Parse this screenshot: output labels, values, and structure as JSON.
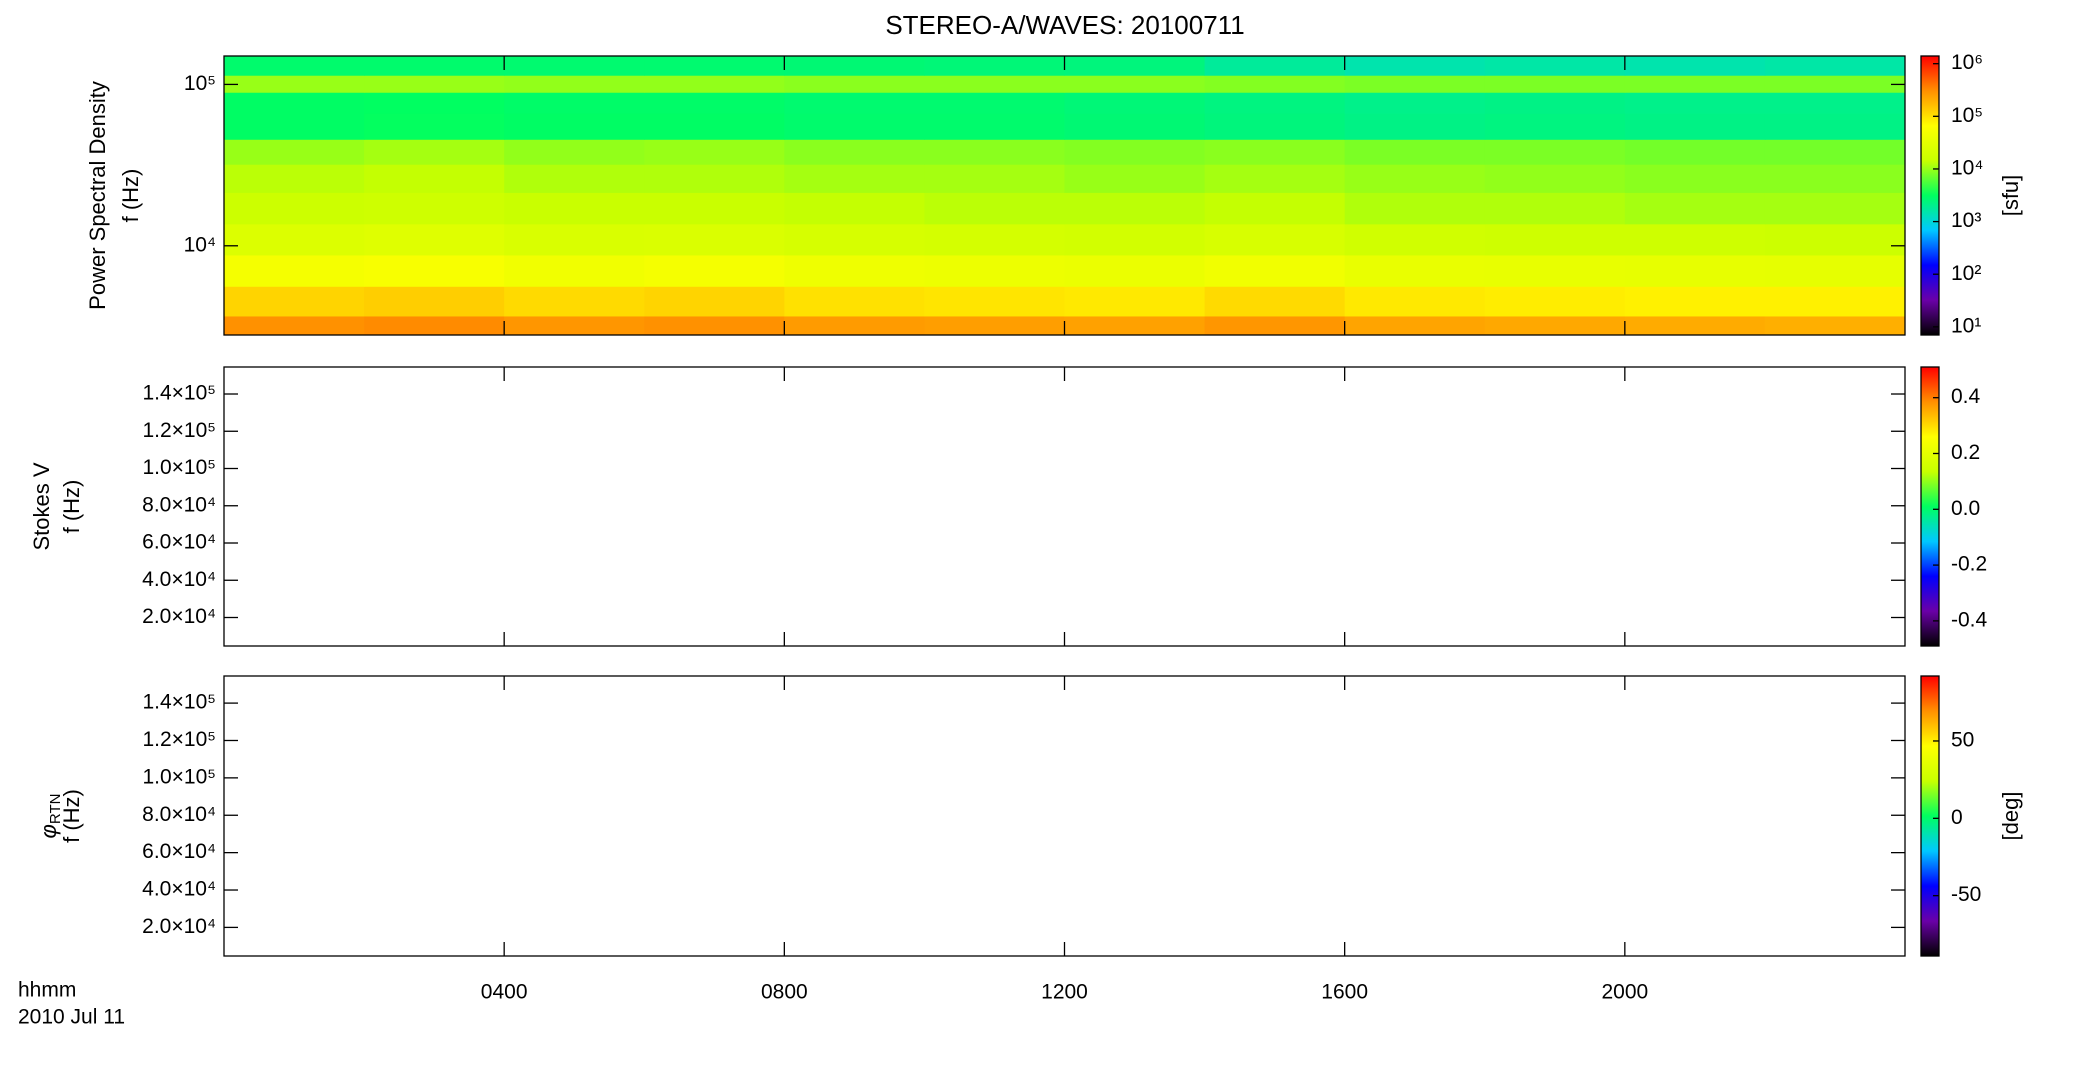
{
  "chart_data": [
    {
      "type": "heatmap",
      "title": "STEREO-A/WAVES: 20100711",
      "ylabel": [
        "Power Spectral Density",
        "f (Hz)"
      ],
      "log": true,
      "ylim": [
        2800,
        150000
      ],
      "yticks": [
        {
          "value": 10000,
          "label": "10⁴"
        },
        {
          "value": 100000,
          "label": "10⁵"
        }
      ],
      "xlim": [
        0,
        24
      ],
      "x": [
        1,
        3,
        5,
        7,
        9,
        11,
        13,
        15,
        17,
        19,
        21,
        23
      ],
      "y": [
        3000,
        4500,
        7000,
        11000,
        17000,
        27000,
        38000,
        55000,
        80000,
        100000,
        130000
      ],
      "z": [
        [
          300000,
          320000,
          280000,
          300000,
          260000,
          250000,
          240000,
          280000,
          230000,
          220000,
          210000,
          200000
        ],
        [
          120000,
          130000,
          110000,
          120000,
          100000,
          95000,
          90000,
          110000,
          90000,
          85000,
          80000,
          80000
        ],
        [
          50000,
          55000,
          45000,
          50000,
          42000,
          40000,
          38000,
          45000,
          36000,
          35000,
          34000,
          33000
        ],
        [
          25000,
          27000,
          23000,
          24000,
          21000,
          20000,
          19000,
          22000,
          18000,
          17000,
          17000,
          16000
        ],
        [
          16000,
          17000,
          15000,
          15000,
          14000,
          13000,
          13000,
          14000,
          12000,
          12000,
          11000,
          11000
        ],
        [
          13000,
          14000,
          12000,
          12000,
          11000,
          11000,
          10000,
          11000,
          10000,
          9500,
          9000,
          9000
        ],
        [
          10000,
          11000,
          9500,
          10000,
          9000,
          9000,
          8500,
          9000,
          8000,
          8000,
          7500,
          7500
        ],
        [
          3000,
          3200,
          3000,
          3000,
          2800,
          2800,
          2600,
          2400,
          2200,
          2300,
          2200,
          2200
        ],
        [
          3000,
          3100,
          2900,
          2900,
          2700,
          2700,
          2500,
          2300,
          2100,
          2200,
          2100,
          2100
        ],
        [
          10000,
          10000,
          9500,
          9500,
          9000,
          9000,
          9000,
          8500,
          8000,
          8000,
          8000,
          8000
        ],
        [
          2800,
          2800,
          2700,
          2700,
          2600,
          2500,
          2400,
          1800,
          1500,
          1600,
          1500,
          1600
        ]
      ],
      "clog": true,
      "clim": [
        7,
        1400000
      ],
      "cticks": [
        {
          "value": 10,
          "label": "10¹"
        },
        {
          "value": 100,
          "label": "10²"
        },
        {
          "value": 1000,
          "label": "10³"
        },
        {
          "value": 10000,
          "label": "10⁴"
        },
        {
          "value": 100000,
          "label": "10⁵"
        },
        {
          "value": 1000000,
          "label": "10⁶"
        }
      ],
      "clabel": "[sfu]",
      "colormap": [
        "#000000",
        "#6a00a8",
        "#0000ff",
        "#00c8ff",
        "#00ff60",
        "#c8ff00",
        "#ffff00",
        "#ff9000",
        "#ff0000"
      ]
    },
    {
      "type": "heatmap",
      "ylabel": [
        "Stokes V",
        "f (Hz)"
      ],
      "log": false,
      "ylim": [
        4700,
        154500
      ],
      "yticks": [
        {
          "value": 20000,
          "label": "2.0×10⁴"
        },
        {
          "value": 40000,
          "label": "4.0×10⁴"
        },
        {
          "value": 60000,
          "label": "6.0×10⁴"
        },
        {
          "value": 80000,
          "label": "8.0×10⁴"
        },
        {
          "value": 100000,
          "label": "1.0×10⁵"
        },
        {
          "value": 120000,
          "label": "1.2×10⁵"
        },
        {
          "value": 140000,
          "label": "1.4×10⁵"
        }
      ],
      "xlim": [
        0,
        24
      ],
      "clog": false,
      "clim": [
        -0.49,
        0.51
      ],
      "cticks": [
        -0.4,
        -0.2,
        {
          "value": 0,
          "label": "0.0"
        },
        0.2,
        0.4
      ],
      "colormap": [
        "#000000",
        "#6a00a8",
        "#0000ff",
        "#00c8ff",
        "#00ff60",
        "#c8ff00",
        "#ffff00",
        "#ff9000",
        "#ff0000"
      ]
    },
    {
      "type": "heatmap",
      "ylabel_symbol": "φ",
      "ylabel_subscript": "RTN",
      "ylabel": [
        "f (Hz)"
      ],
      "log": false,
      "ylim": [
        4700,
        154500
      ],
      "yticks": [
        {
          "value": 20000,
          "label": "2.0×10⁴"
        },
        {
          "value": 40000,
          "label": "4.0×10⁴"
        },
        {
          "value": 60000,
          "label": "6.0×10⁴"
        },
        {
          "value": 80000,
          "label": "8.0×10⁴"
        },
        {
          "value": 100000,
          "label": "1.0×10⁵"
        },
        {
          "value": 120000,
          "label": "1.2×10⁵"
        },
        {
          "value": 140000,
          "label": "1.4×10⁵"
        }
      ],
      "xlim": [
        0,
        24
      ],
      "xticks": [
        {
          "value": 4,
          "label": "0400"
        },
        {
          "value": 8,
          "label": "0800"
        },
        {
          "value": 12,
          "label": "1200"
        },
        {
          "value": 16,
          "label": "1600"
        },
        {
          "value": 20,
          "label": "2000"
        }
      ],
      "xlabel": [
        "hhmm",
        "2010 Jul 11"
      ],
      "clog": false,
      "clim": [
        -89,
        92
      ],
      "cticks": [
        -50,
        0,
        50
      ],
      "clabel": "[deg]",
      "colormap": [
        "#000000",
        "#6a00a8",
        "#0000ff",
        "#00c8ff",
        "#00ff60",
        "#c8ff00",
        "#ffff00",
        "#ff9000",
        "#ff0000"
      ]
    }
  ]
}
